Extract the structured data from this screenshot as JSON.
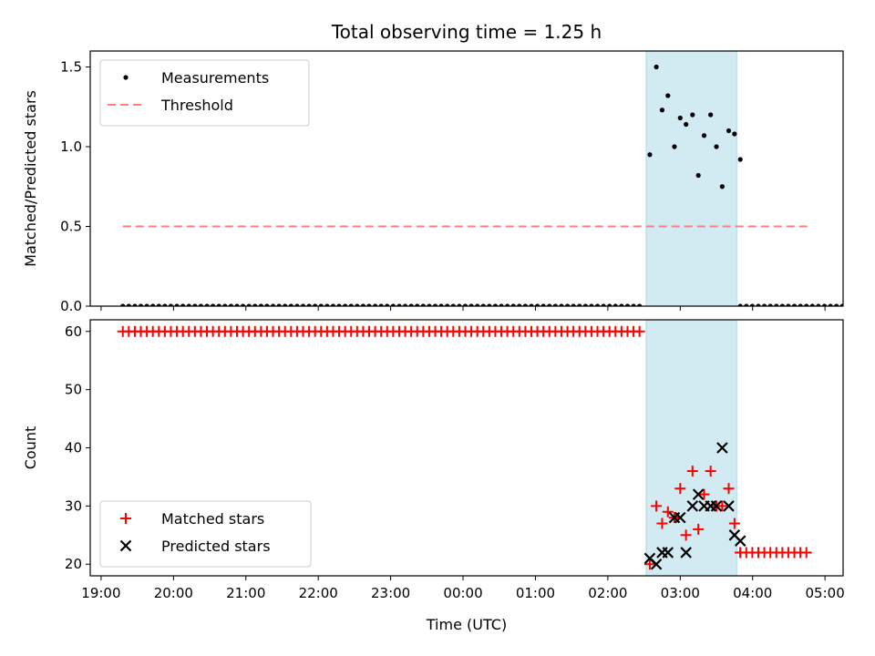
{
  "chart_data": {
    "title": "Total observing time = 1.25 h",
    "xlabel": "Time (UTC)",
    "x_unit": "hours",
    "x_ticks": [
      {
        "value": 19,
        "label": "19:00"
      },
      {
        "value": 20,
        "label": "20:00"
      },
      {
        "value": 21,
        "label": "21:00"
      },
      {
        "value": 22,
        "label": "22:00"
      },
      {
        "value": 23,
        "label": "23:00"
      },
      {
        "value": 24,
        "label": "00:00"
      },
      {
        "value": 25,
        "label": "01:00"
      },
      {
        "value": 26,
        "label": "02:00"
      },
      {
        "value": 27,
        "label": "03:00"
      },
      {
        "value": 28,
        "label": "04:00"
      },
      {
        "value": 29,
        "label": "05:00"
      }
    ],
    "xlim": [
      18.85,
      29.25
    ],
    "observing_window": {
      "start": 26.53,
      "end": 27.78,
      "color": "#add8e6"
    },
    "panels": [
      {
        "ylabel": "Matched/Predicted stars",
        "ylim": [
          0,
          1.6
        ],
        "y_ticks": [
          {
            "value": 0,
            "label": "0.0"
          },
          {
            "value": 0.5,
            "label": "0.5"
          },
          {
            "value": 1.0,
            "label": "1.0"
          },
          {
            "value": 1.5,
            "label": "1.5"
          }
        ],
        "legend": {
          "placement": "upper-left",
          "entries": [
            {
              "label": "Measurements",
              "marker": "dot",
              "color": "#000000"
            },
            {
              "label": "Threshold",
              "marker": "dashed-line",
              "color": "#ff7f7f"
            }
          ]
        },
        "series": [
          {
            "name": "Measurements",
            "type": "scatter",
            "marker": "dot",
            "color": "#000000",
            "zero_run": {
              "x_start": 19.3,
              "x_end": 26.5,
              "step": 0.083
            },
            "zero_run_after": {
              "x_start": 27.83,
              "x_end": 29.8,
              "step": 0.083
            },
            "points": [
              {
                "x": 26.58,
                "y": 0.95
              },
              {
                "x": 26.67,
                "y": 1.5
              },
              {
                "x": 26.75,
                "y": 1.23
              },
              {
                "x": 26.83,
                "y": 1.32
              },
              {
                "x": 26.92,
                "y": 1.0
              },
              {
                "x": 27.0,
                "y": 1.18
              },
              {
                "x": 27.08,
                "y": 1.14
              },
              {
                "x": 27.17,
                "y": 1.2
              },
              {
                "x": 27.25,
                "y": 0.82
              },
              {
                "x": 27.33,
                "y": 1.07
              },
              {
                "x": 27.42,
                "y": 1.2
              },
              {
                "x": 27.5,
                "y": 1.0
              },
              {
                "x": 27.58,
                "y": 0.75
              },
              {
                "x": 27.67,
                "y": 1.1
              },
              {
                "x": 27.75,
                "y": 1.08
              },
              {
                "x": 27.83,
                "y": 0.92
              }
            ]
          },
          {
            "name": "Threshold",
            "type": "line",
            "style": "dashed",
            "color": "#ff7f7f",
            "x": [
              19.3,
              28.8
            ],
            "y": [
              0.5,
              0.5
            ]
          }
        ]
      },
      {
        "ylabel": "Count",
        "ylim": [
          18,
          62
        ],
        "y_ticks": [
          {
            "value": 20,
            "label": "20"
          },
          {
            "value": 30,
            "label": "30"
          },
          {
            "value": 40,
            "label": "40"
          },
          {
            "value": 50,
            "label": "50"
          },
          {
            "value": 60,
            "label": "60"
          }
        ],
        "legend": {
          "placement": "lower-left",
          "entries": [
            {
              "label": "Matched stars",
              "marker": "plus",
              "color": "#ff0000"
            },
            {
              "label": "Predicted stars",
              "marker": "x",
              "color": "#000000"
            }
          ]
        },
        "series": [
          {
            "name": "Matched stars",
            "type": "scatter",
            "marker": "plus",
            "color": "#ff0000",
            "constant_run_before": {
              "x_start": 19.3,
              "x_end": 26.5,
              "step": 0.083,
              "y": 60
            },
            "constant_run_after": {
              "x_start": 27.83,
              "x_end": 28.8,
              "step": 0.083,
              "y": 22
            },
            "points": [
              {
                "x": 26.58,
                "y": 20
              },
              {
                "x": 26.67,
                "y": 30
              },
              {
                "x": 26.75,
                "y": 27
              },
              {
                "x": 26.83,
                "y": 29
              },
              {
                "x": 26.92,
                "y": 28
              },
              {
                "x": 27.0,
                "y": 33
              },
              {
                "x": 27.08,
                "y": 25
              },
              {
                "x": 27.17,
                "y": 36
              },
              {
                "x": 27.25,
                "y": 26
              },
              {
                "x": 27.33,
                "y": 32
              },
              {
                "x": 27.42,
                "y": 36
              },
              {
                "x": 27.5,
                "y": 30
              },
              {
                "x": 27.58,
                "y": 30
              },
              {
                "x": 27.67,
                "y": 33
              },
              {
                "x": 27.75,
                "y": 27
              },
              {
                "x": 27.83,
                "y": 22
              }
            ]
          },
          {
            "name": "Predicted stars",
            "type": "scatter",
            "marker": "x",
            "color": "#000000",
            "points": [
              {
                "x": 26.58,
                "y": 21
              },
              {
                "x": 26.67,
                "y": 20
              },
              {
                "x": 26.75,
                "y": 22
              },
              {
                "x": 26.83,
                "y": 22
              },
              {
                "x": 26.92,
                "y": 28
              },
              {
                "x": 27.0,
                "y": 28
              },
              {
                "x": 27.08,
                "y": 22
              },
              {
                "x": 27.17,
                "y": 30
              },
              {
                "x": 27.25,
                "y": 32
              },
              {
                "x": 27.33,
                "y": 30
              },
              {
                "x": 27.42,
                "y": 30
              },
              {
                "x": 27.5,
                "y": 30
              },
              {
                "x": 27.58,
                "y": 40
              },
              {
                "x": 27.67,
                "y": 30
              },
              {
                "x": 27.75,
                "y": 25
              },
              {
                "x": 27.83,
                "y": 24
              }
            ]
          }
        ]
      }
    ]
  }
}
